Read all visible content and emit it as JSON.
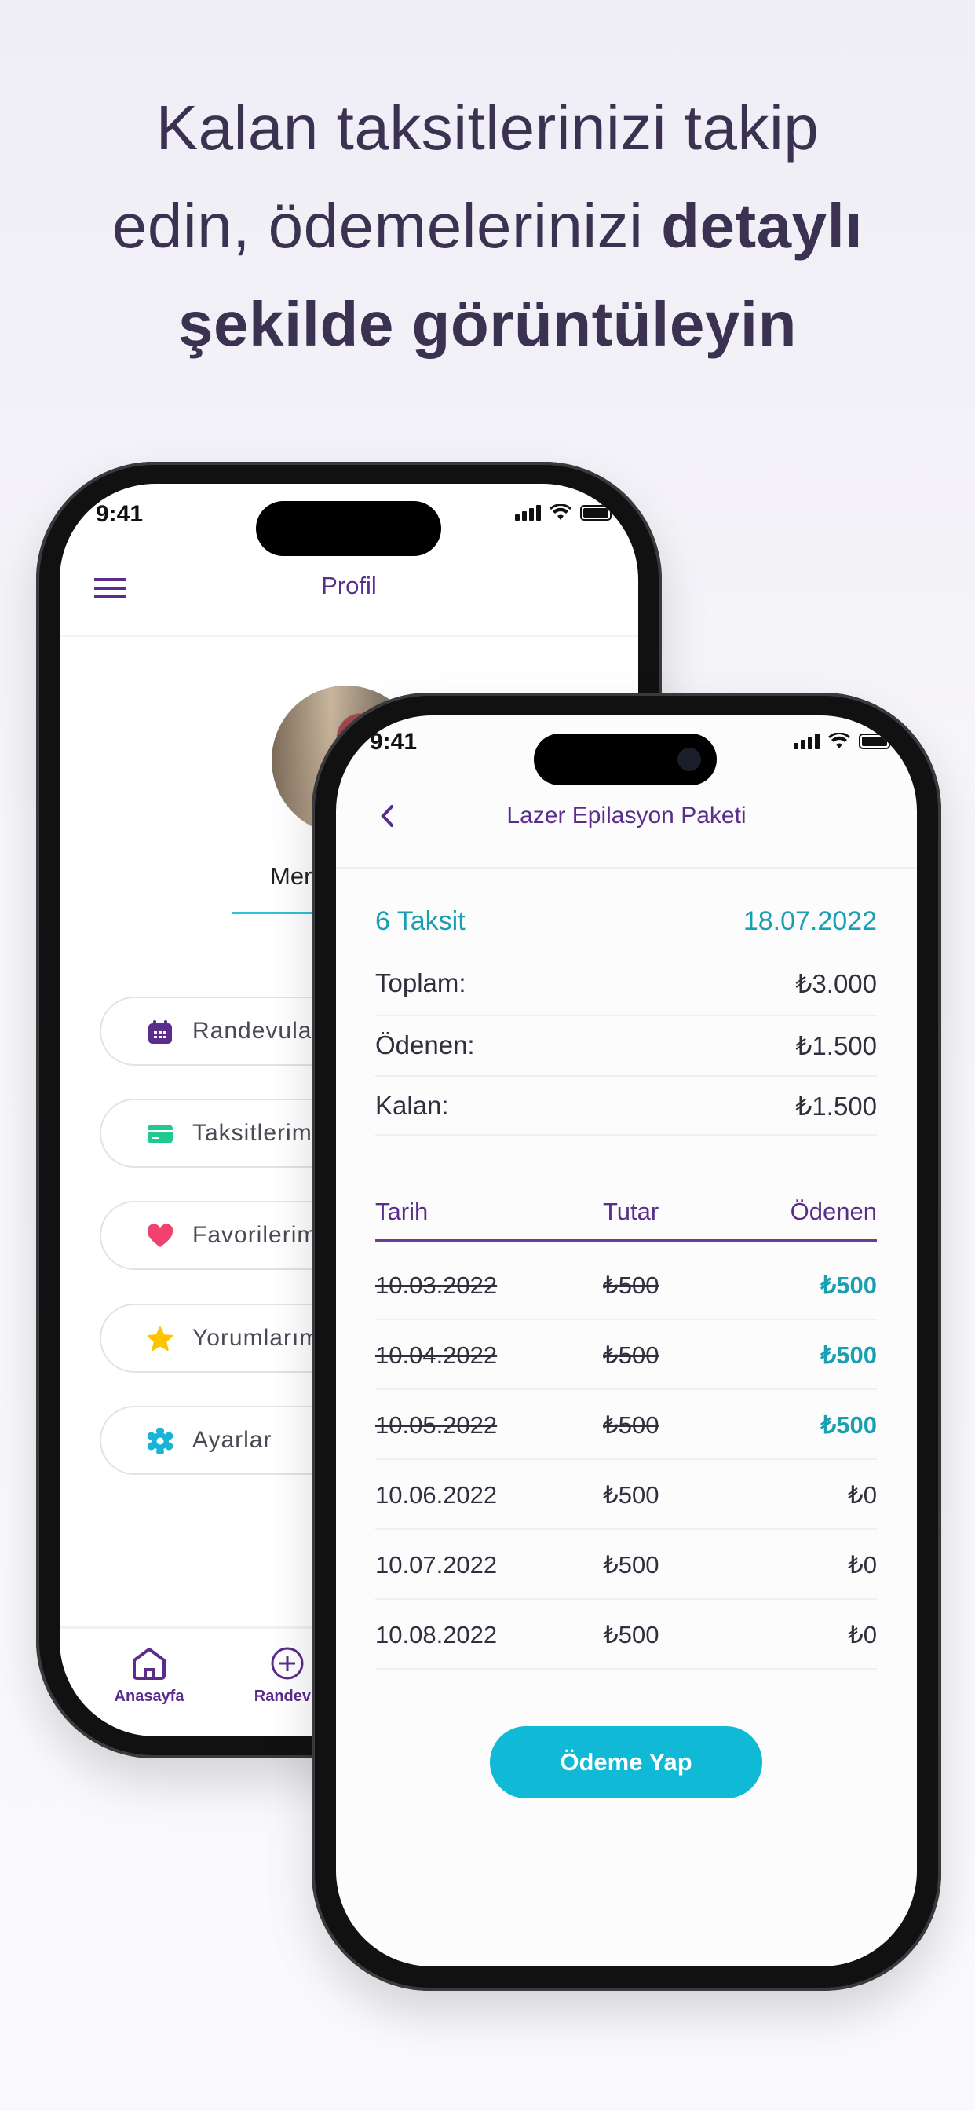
{
  "headline": {
    "line1": "Kalan taksitlerinizi takip",
    "line2_normal": "edin, ödemelerinizi ",
    "line2_bold": "detaylı",
    "line3_bold": "şekilde görüntüleyin"
  },
  "colors": {
    "purple": "#5a2d8c",
    "teal": "#1a9fb0",
    "button": "#10b9d5"
  },
  "back_phone": {
    "status_time": "9:41",
    "header_title": "Profil",
    "menu_icon": "hamburger-icon",
    "profile_name_partial": "Mer",
    "menu_items": [
      {
        "label": "Randevularım",
        "icon": "calendar-icon",
        "color": "#5a2d8c"
      },
      {
        "label": "Taksitlerim",
        "icon": "credit-card-icon",
        "color": "#22c98c"
      },
      {
        "label": "Favorilerim",
        "icon": "heart-icon",
        "color": "#f0426c"
      },
      {
        "label": "Yorumlarım",
        "icon": "star-icon",
        "color": "#ffc400"
      },
      {
        "label": "Ayarlar",
        "icon": "gear-icon",
        "color": "#16b4d6"
      }
    ],
    "bottom_nav": [
      {
        "label": "Anasayfa",
        "icon": "home-icon"
      },
      {
        "label": "Randevu",
        "icon": "plus-circle-icon"
      }
    ]
  },
  "front_phone": {
    "status_time": "9:41",
    "header_title": "Lazer Epilasyon Paketi",
    "installments": "6 Taksit",
    "date": "18.07.2022",
    "summary": [
      {
        "label": "Toplam:",
        "value": "₺3.000"
      },
      {
        "label": "Ödenen:",
        "value": "₺1.500"
      },
      {
        "label": "Kalan:",
        "value": "₺1.500"
      }
    ],
    "table": {
      "headers": [
        "Tarih",
        "Tutar",
        "Ödenen"
      ],
      "rows": [
        {
          "date": "10.03.2022",
          "amount": "₺500",
          "paid": "₺500",
          "is_paid": true
        },
        {
          "date": "10.04.2022",
          "amount": "₺500",
          "paid": "₺500",
          "is_paid": true
        },
        {
          "date": "10.05.2022",
          "amount": "₺500",
          "paid": "₺500",
          "is_paid": true
        },
        {
          "date": "10.06.2022",
          "amount": "₺500",
          "paid": "₺0",
          "is_paid": false
        },
        {
          "date": "10.07.2022",
          "amount": "₺500",
          "paid": "₺0",
          "is_paid": false
        },
        {
          "date": "10.08.2022",
          "amount": "₺500",
          "paid": "₺0",
          "is_paid": false
        }
      ]
    },
    "pay_button": "Ödeme Yap"
  }
}
